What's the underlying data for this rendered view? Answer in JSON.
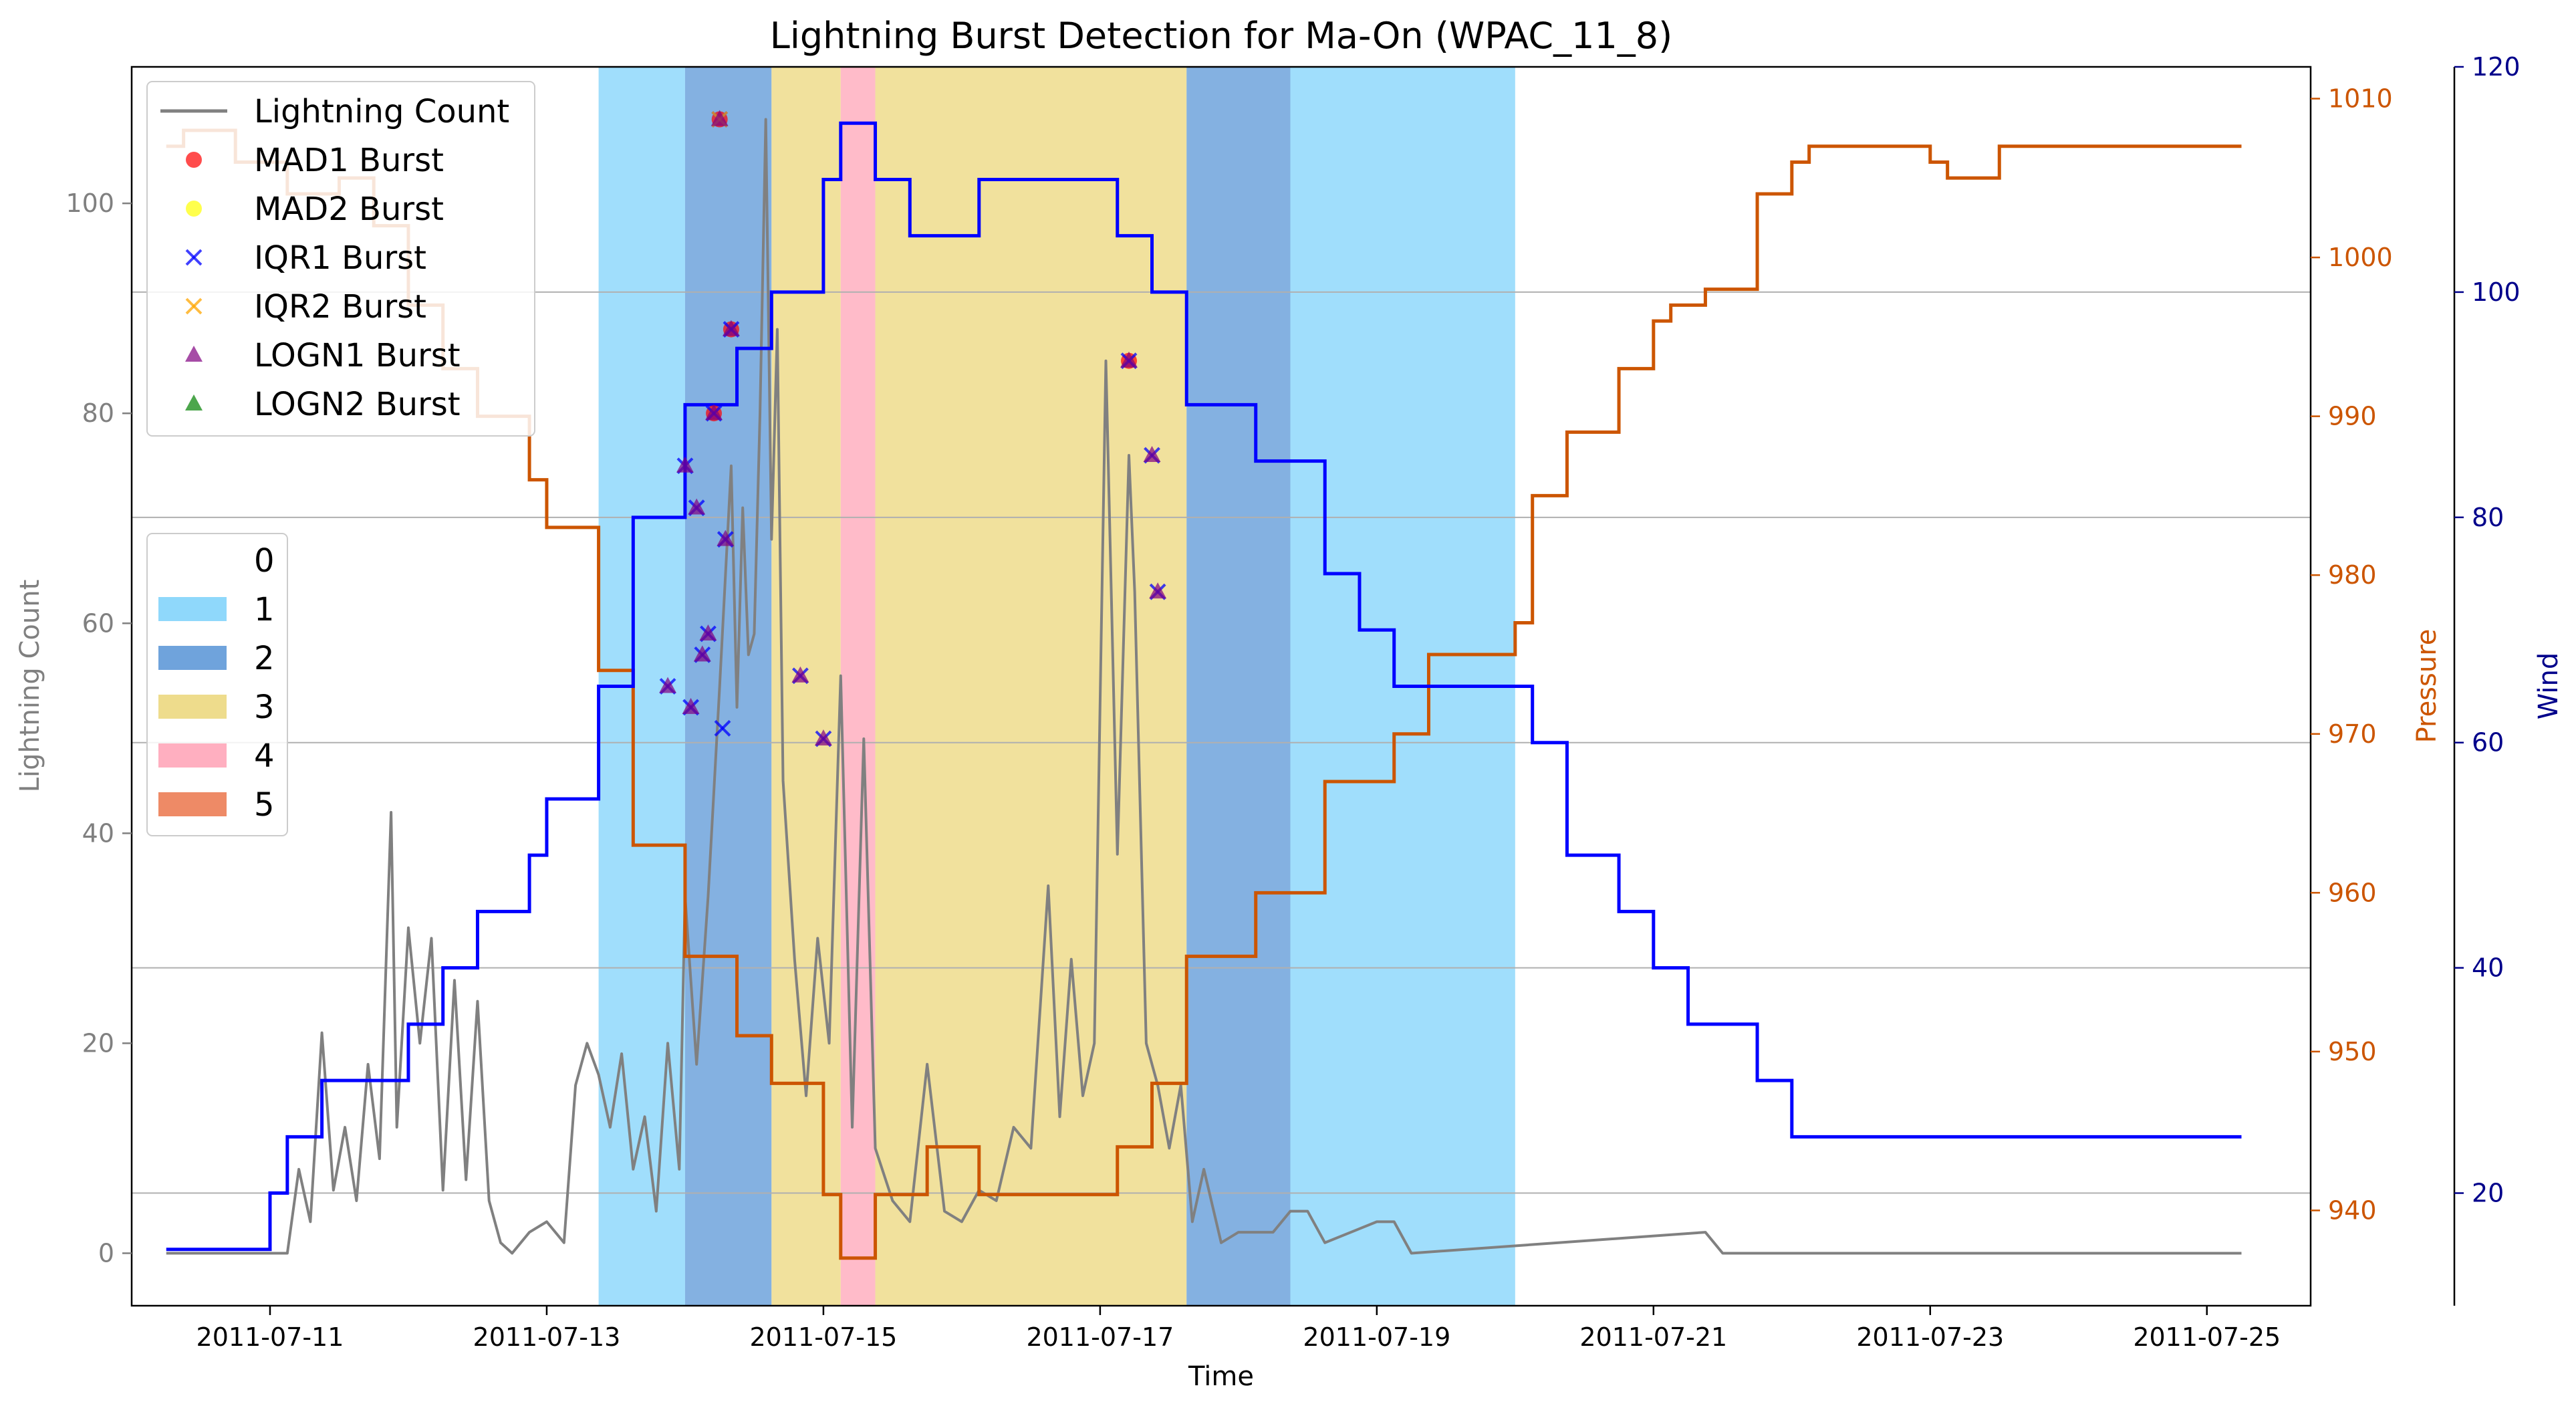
{
  "chart_data": {
    "type": "line",
    "title": "Lightning Burst Detection for Ma-On (WPAC_11_8)",
    "xlabel": "Time",
    "ylabel_left": "Lightning Count",
    "ylabel_pressure": "Pressure",
    "ylabel_wind": "Wind",
    "xlim": [
      "2011-07-10 00:00",
      "2011-07-25 18:00"
    ],
    "ylim_left": [
      -5,
      113
    ],
    "ylim_pressure": [
      934,
      1012
    ],
    "ylim_wind": [
      10,
      120
    ],
    "x_ticks": [
      "2011-07-11",
      "2011-07-13",
      "2011-07-15",
      "2011-07-17",
      "2011-07-19",
      "2011-07-21",
      "2011-07-23",
      "2011-07-25"
    ],
    "y_ticks_left": [
      0,
      20,
      40,
      60,
      80,
      100
    ],
    "y_ticks_pressure": [
      940,
      950,
      960,
      970,
      980,
      990,
      1000,
      1010
    ],
    "y_ticks_wind": [
      20,
      40,
      60,
      80,
      100,
      120
    ],
    "grid": "horizontal (wind axis)",
    "colors": {
      "lightning": "#808080",
      "pressure": "#cc5500",
      "wind": "#0000ff",
      "wind_axis": "#00008b",
      "grid": "#b0b0b0"
    },
    "legend_lines": {
      "position": "top-left",
      "entries": [
        {
          "label": "Lightning Count",
          "marker": "line",
          "color": "#808080"
        },
        {
          "label": "MAD1 Burst",
          "marker": "circle",
          "color": "#ff0000"
        },
        {
          "label": "MAD2 Burst",
          "marker": "circle",
          "color": "#ffff00"
        },
        {
          "label": "IQR1 Burst",
          "marker": "x",
          "color": "#0000ff"
        },
        {
          "label": "IQR2 Burst",
          "marker": "x",
          "color": "#ffa500"
        },
        {
          "label": "LOGN1 Burst",
          "marker": "triangle",
          "color": "#800080"
        },
        {
          "label": "LOGN2 Burst",
          "marker": "triangle",
          "color": "#008000"
        }
      ]
    },
    "legend_categories": {
      "position": "center-left",
      "entries": [
        {
          "label": "0",
          "color": "#ffffff"
        },
        {
          "label": "1",
          "color": "#8fd8fb"
        },
        {
          "label": "2",
          "color": "#6fa3dc"
        },
        {
          "label": "3",
          "color": "#eedc8c"
        },
        {
          "label": "4",
          "color": "#ffafc0"
        },
        {
          "label": "5",
          "color": "#ee8a66"
        }
      ]
    },
    "category_bands": [
      {
        "start": "2011-07-13 09:00",
        "end": "2011-07-14 00:00",
        "category": 1
      },
      {
        "start": "2011-07-14 00:00",
        "end": "2011-07-14 15:00",
        "category": 2
      },
      {
        "start": "2011-07-14 15:00",
        "end": "2011-07-15 03:00",
        "category": 3
      },
      {
        "start": "2011-07-15 03:00",
        "end": "2011-07-15 09:00",
        "category": 4
      },
      {
        "start": "2011-07-15 09:00",
        "end": "2011-07-17 15:00",
        "category": 3
      },
      {
        "start": "2011-07-17 15:00",
        "end": "2011-07-18 09:00",
        "category": 2
      },
      {
        "start": "2011-07-18 09:00",
        "end": "2011-07-20 00:00",
        "category": 1
      }
    ],
    "wind": [
      [
        "2011-07-10 06:00",
        15
      ],
      [
        "2011-07-11 00:00",
        20
      ],
      [
        "2011-07-11 03:00",
        25
      ],
      [
        "2011-07-11 09:00",
        30
      ],
      [
        "2011-07-12 00:00",
        35
      ],
      [
        "2011-07-12 06:00",
        40
      ],
      [
        "2011-07-12 12:00",
        45
      ],
      [
        "2011-07-12 21:00",
        50
      ],
      [
        "2011-07-13 00:00",
        55
      ],
      [
        "2011-07-13 09:00",
        65
      ],
      [
        "2011-07-13 15:00",
        80
      ],
      [
        "2011-07-14 00:00",
        90
      ],
      [
        "2011-07-14 09:00",
        95
      ],
      [
        "2011-07-14 15:00",
        100
      ],
      [
        "2011-07-15 00:00",
        110
      ],
      [
        "2011-07-15 03:00",
        115
      ],
      [
        "2011-07-15 09:00",
        110
      ],
      [
        "2011-07-15 15:00",
        105
      ],
      [
        "2011-07-16 03:00",
        110
      ],
      [
        "2011-07-17 03:00",
        105
      ],
      [
        "2011-07-17 09:00",
        100
      ],
      [
        "2011-07-17 15:00",
        90
      ],
      [
        "2011-07-18 03:00",
        85
      ],
      [
        "2011-07-18 15:00",
        75
      ],
      [
        "2011-07-18 21:00",
        70
      ],
      [
        "2011-07-19 03:00",
        65
      ],
      [
        "2011-07-19 21:00",
        65
      ],
      [
        "2011-07-20 03:00",
        60
      ],
      [
        "2011-07-20 09:00",
        50
      ],
      [
        "2011-07-20 18:00",
        45
      ],
      [
        "2011-07-21 00:00",
        40
      ],
      [
        "2011-07-21 06:00",
        35
      ],
      [
        "2011-07-21 18:00",
        30
      ],
      [
        "2011-07-22 00:00",
        25
      ],
      [
        "2011-07-25 06:00",
        25
      ]
    ],
    "pressure": [
      [
        "2011-07-10 06:00",
        1007
      ],
      [
        "2011-07-10 09:00",
        1008
      ],
      [
        "2011-07-10 18:00",
        1006
      ],
      [
        "2011-07-11 03:00",
        1004
      ],
      [
        "2011-07-11 12:00",
        1005
      ],
      [
        "2011-07-11 18:00",
        1002
      ],
      [
        "2011-07-12 00:00",
        997
      ],
      [
        "2011-07-12 06:00",
        993
      ],
      [
        "2011-07-12 12:00",
        990
      ],
      [
        "2011-07-12 21:00",
        986
      ],
      [
        "2011-07-13 00:00",
        983
      ],
      [
        "2011-07-13 09:00",
        974
      ],
      [
        "2011-07-13 15:00",
        963
      ],
      [
        "2011-07-14 00:00",
        956
      ],
      [
        "2011-07-14 09:00",
        951
      ],
      [
        "2011-07-14 15:00",
        948
      ],
      [
        "2011-07-15 00:00",
        941
      ],
      [
        "2011-07-15 03:00",
        937
      ],
      [
        "2011-07-15 09:00",
        941
      ],
      [
        "2011-07-15 18:00",
        944
      ],
      [
        "2011-07-16 03:00",
        941
      ],
      [
        "2011-07-17 03:00",
        944
      ],
      [
        "2011-07-17 09:00",
        948
      ],
      [
        "2011-07-17 15:00",
        956
      ],
      [
        "2011-07-18 03:00",
        960
      ],
      [
        "2011-07-18 15:00",
        967
      ],
      [
        "2011-07-19 03:00",
        970
      ],
      [
        "2011-07-19 09:00",
        975
      ],
      [
        "2011-07-20 00:00",
        977
      ],
      [
        "2011-07-20 03:00",
        985
      ],
      [
        "2011-07-20 09:00",
        989
      ],
      [
        "2011-07-20 18:00",
        993
      ],
      [
        "2011-07-21 00:00",
        996
      ],
      [
        "2011-07-21 03:00",
        997
      ],
      [
        "2011-07-21 09:00",
        998
      ],
      [
        "2011-07-21 18:00",
        1004
      ],
      [
        "2011-07-22 00:00",
        1006
      ],
      [
        "2011-07-22 03:00",
        1007
      ],
      [
        "2011-07-23 00:00",
        1006
      ],
      [
        "2011-07-23 03:00",
        1005
      ],
      [
        "2011-07-23 12:00",
        1007
      ],
      [
        "2011-07-25 06:00",
        1007
      ]
    ],
    "lightning": [
      [
        "2011-07-10 06:00",
        0
      ],
      [
        "2011-07-11 03:00",
        0
      ],
      [
        "2011-07-11 05:00",
        8
      ],
      [
        "2011-07-11 07:00",
        3
      ],
      [
        "2011-07-11 09:00",
        21
      ],
      [
        "2011-07-11 11:00",
        6
      ],
      [
        "2011-07-11 13:00",
        12
      ],
      [
        "2011-07-11 15:00",
        5
      ],
      [
        "2011-07-11 17:00",
        18
      ],
      [
        "2011-07-11 19:00",
        9
      ],
      [
        "2011-07-11 21:00",
        42
      ],
      [
        "2011-07-11 22:00",
        12
      ],
      [
        "2011-07-12 00:00",
        31
      ],
      [
        "2011-07-12 02:00",
        20
      ],
      [
        "2011-07-12 04:00",
        30
      ],
      [
        "2011-07-12 06:00",
        6
      ],
      [
        "2011-07-12 08:00",
        26
      ],
      [
        "2011-07-12 10:00",
        7
      ],
      [
        "2011-07-12 12:00",
        24
      ],
      [
        "2011-07-12 14:00",
        5
      ],
      [
        "2011-07-12 16:00",
        1
      ],
      [
        "2011-07-12 18:00",
        0
      ],
      [
        "2011-07-12 21:00",
        2
      ],
      [
        "2011-07-13 00:00",
        3
      ],
      [
        "2011-07-13 03:00",
        1
      ],
      [
        "2011-07-13 05:00",
        16
      ],
      [
        "2011-07-13 07:00",
        20
      ],
      [
        "2011-07-13 09:00",
        17
      ],
      [
        "2011-07-13 11:00",
        12
      ],
      [
        "2011-07-13 13:00",
        19
      ],
      [
        "2011-07-13 15:00",
        8
      ],
      [
        "2011-07-13 17:00",
        13
      ],
      [
        "2011-07-13 19:00",
        4
      ],
      [
        "2011-07-13 21:00",
        20
      ],
      [
        "2011-07-13 23:00",
        8
      ],
      [
        "2011-07-14 00:00",
        34
      ],
      [
        "2011-07-14 02:00",
        18
      ],
      [
        "2011-07-14 04:00",
        34
      ],
      [
        "2011-07-14 06:00",
        54
      ],
      [
        "2011-07-14 08:00",
        75
      ],
      [
        "2011-07-14 09:00",
        52
      ],
      [
        "2011-07-14 10:00",
        71
      ],
      [
        "2011-07-14 11:00",
        57
      ],
      [
        "2011-07-14 12:00",
        59
      ],
      [
        "2011-07-14 13:00",
        80
      ],
      [
        "2011-07-14 14:00",
        108
      ],
      [
        "2011-07-14 15:00",
        68
      ],
      [
        "2011-07-14 16:00",
        88
      ],
      [
        "2011-07-14 17:00",
        45
      ],
      [
        "2011-07-14 19:00",
        28
      ],
      [
        "2011-07-14 21:00",
        15
      ],
      [
        "2011-07-14 23:00",
        30
      ],
      [
        "2011-07-15 01:00",
        20
      ],
      [
        "2011-07-15 03:00",
        55
      ],
      [
        "2011-07-15 05:00",
        12
      ],
      [
        "2011-07-15 07:00",
        49
      ],
      [
        "2011-07-15 09:00",
        10
      ],
      [
        "2011-07-15 12:00",
        5
      ],
      [
        "2011-07-15 15:00",
        3
      ],
      [
        "2011-07-15 18:00",
        18
      ],
      [
        "2011-07-15 21:00",
        4
      ],
      [
        "2011-07-16 00:00",
        3
      ],
      [
        "2011-07-16 03:00",
        6
      ],
      [
        "2011-07-16 06:00",
        5
      ],
      [
        "2011-07-16 09:00",
        12
      ],
      [
        "2011-07-16 12:00",
        10
      ],
      [
        "2011-07-16 15:00",
        35
      ],
      [
        "2011-07-16 17:00",
        13
      ],
      [
        "2011-07-16 19:00",
        28
      ],
      [
        "2011-07-16 21:00",
        15
      ],
      [
        "2011-07-16 23:00",
        20
      ],
      [
        "2011-07-17 01:00",
        85
      ],
      [
        "2011-07-17 03:00",
        38
      ],
      [
        "2011-07-17 05:00",
        76
      ],
      [
        "2011-07-17 06:00",
        63
      ],
      [
        "2011-07-17 08:00",
        20
      ],
      [
        "2011-07-17 10:00",
        16
      ],
      [
        "2011-07-17 12:00",
        10
      ],
      [
        "2011-07-17 14:00",
        16
      ],
      [
        "2011-07-17 16:00",
        3
      ],
      [
        "2011-07-17 18:00",
        8
      ],
      [
        "2011-07-17 21:00",
        1
      ],
      [
        "2011-07-18 00:00",
        2
      ],
      [
        "2011-07-18 03:00",
        2
      ],
      [
        "2011-07-18 06:00",
        2
      ],
      [
        "2011-07-18 09:00",
        4
      ],
      [
        "2011-07-18 12:00",
        4
      ],
      [
        "2011-07-18 15:00",
        1
      ],
      [
        "2011-07-19 00:00",
        3
      ],
      [
        "2011-07-19 03:00",
        3
      ],
      [
        "2011-07-19 06:00",
        0
      ],
      [
        "2011-07-21 09:00",
        2
      ],
      [
        "2011-07-21 12:00",
        0
      ],
      [
        "2011-07-25 06:00",
        0
      ]
    ],
    "bursts": [
      {
        "time": "2011-07-13 21:00",
        "value": 54,
        "markers": [
          "IQR1",
          "LOGN1"
        ]
      },
      {
        "time": "2011-07-14 00:00",
        "value": 75,
        "markers": [
          "IQR1",
          "LOGN1"
        ]
      },
      {
        "time": "2011-07-14 01:00",
        "value": 52,
        "markers": [
          "IQR1",
          "LOGN1"
        ]
      },
      {
        "time": "2011-07-14 02:00",
        "value": 71,
        "markers": [
          "IQR1",
          "LOGN1"
        ]
      },
      {
        "time": "2011-07-14 03:00",
        "value": 57,
        "markers": [
          "IQR1",
          "LOGN1"
        ]
      },
      {
        "time": "2011-07-14 04:00",
        "value": 59,
        "markers": [
          "IQR1",
          "LOGN1"
        ]
      },
      {
        "time": "2011-07-14 05:00",
        "value": 80,
        "markers": [
          "MAD1",
          "IQR1",
          "LOGN1"
        ]
      },
      {
        "time": "2011-07-14 06:00",
        "value": 108,
        "markers": [
          "MAD1",
          "IQR1",
          "IQR2",
          "LOGN1"
        ]
      },
      {
        "time": "2011-07-14 06:30",
        "value": 50,
        "markers": [
          "IQR1"
        ]
      },
      {
        "time": "2011-07-14 07:00",
        "value": 68,
        "markers": [
          "IQR1",
          "LOGN1"
        ]
      },
      {
        "time": "2011-07-14 08:00",
        "value": 88,
        "markers": [
          "MAD1",
          "IQR1",
          "LOGN1"
        ]
      },
      {
        "time": "2011-07-14 20:00",
        "value": 55,
        "markers": [
          "IQR1",
          "LOGN1"
        ]
      },
      {
        "time": "2011-07-15 00:00",
        "value": 49,
        "markers": [
          "IQR1",
          "LOGN1"
        ]
      },
      {
        "time": "2011-07-17 05:00",
        "value": 85,
        "markers": [
          "MAD1",
          "IQR1",
          "LOGN1"
        ]
      },
      {
        "time": "2011-07-17 09:00",
        "value": 76,
        "markers": [
          "IQR1",
          "LOGN1"
        ]
      },
      {
        "time": "2011-07-17 10:00",
        "value": 63,
        "markers": [
          "IQR1",
          "LOGN1"
        ]
      }
    ]
  }
}
